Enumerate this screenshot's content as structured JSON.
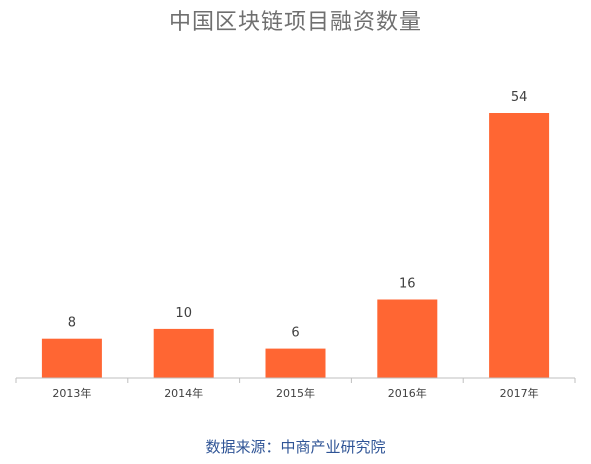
{
  "chart_data": {
    "type": "bar",
    "title": "中国区块链项目融资数量",
    "categories": [
      "2013年",
      "2014年",
      "2015年",
      "2016年",
      "2017年"
    ],
    "values": [
      8,
      10,
      6,
      16,
      54
    ],
    "ylim": [
      0,
      54
    ],
    "grid": false,
    "bar_color": "#ff6633",
    "axis_color": "#bfbfbf"
  },
  "source_text": "数据来源：中商产业研究院"
}
